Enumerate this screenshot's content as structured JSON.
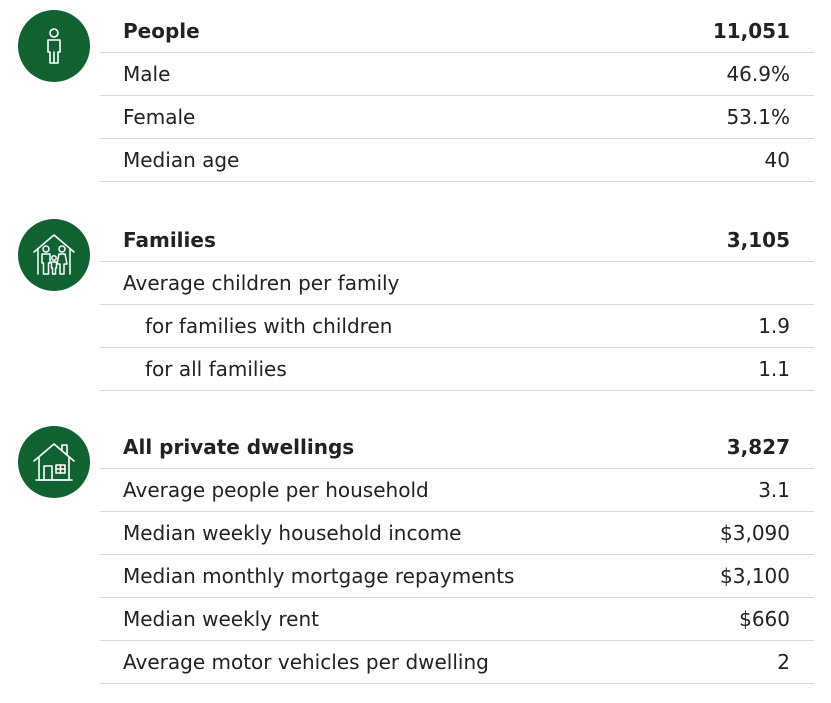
{
  "sections": [
    {
      "icon": "person-icon",
      "rows": [
        {
          "label": "People",
          "value": "11,051"
        },
        {
          "label": "Male",
          "value": "46.9%"
        },
        {
          "label": "Female",
          "value": "53.1%"
        },
        {
          "label": "Median age",
          "value": "40"
        }
      ]
    },
    {
      "icon": "family-house-icon",
      "rows": [
        {
          "label": "Families",
          "value": "3,105"
        },
        {
          "label": "Average children per family",
          "value": ""
        },
        {
          "label": "for families with children",
          "value": "1.9"
        },
        {
          "label": "for all families",
          "value": "1.1"
        }
      ]
    },
    {
      "icon": "house-icon",
      "rows": [
        {
          "label": "All private dwellings",
          "value": "3,827"
        },
        {
          "label": "Average people per household",
          "value": "3.1"
        },
        {
          "label": "Median weekly household income",
          "value": "$3,090"
        },
        {
          "label": "Median monthly mortgage repayments",
          "value": "$3,100"
        },
        {
          "label": "Median weekly rent",
          "value": "$660"
        },
        {
          "label": "Average motor vehicles per dwelling",
          "value": "2"
        }
      ]
    }
  ],
  "colors": {
    "badge": "#116232",
    "text": "#222222",
    "divider": "#d9d9d9"
  }
}
